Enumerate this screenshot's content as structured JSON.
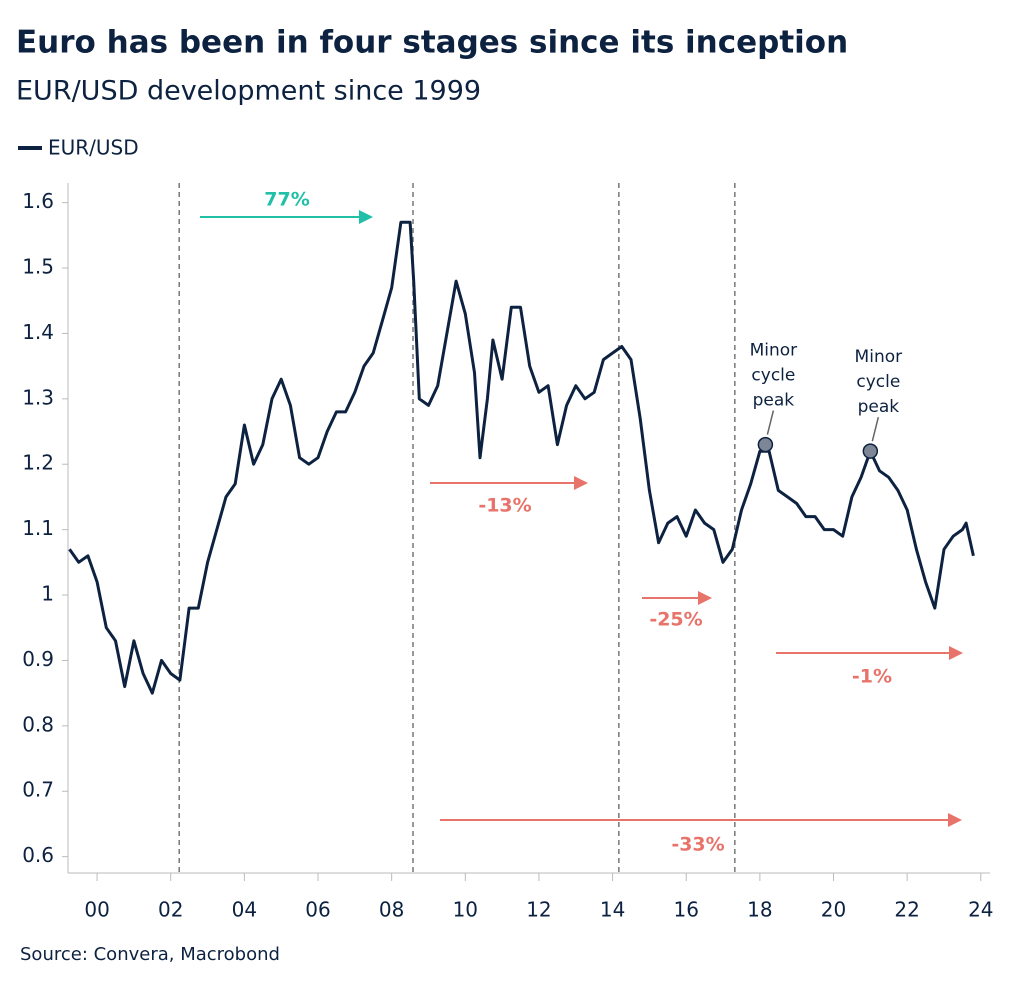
{
  "chart_data": {
    "type": "line",
    "title": "Euro has been in four stages since its inception",
    "subtitle": "EUR/USD development since 1999",
    "source": "Source: Convera, Macrobond",
    "x": [
      1999.25,
      1999.5,
      1999.75,
      2000.0,
      2000.25,
      2000.5,
      2000.75,
      2001.0,
      2001.25,
      2001.5,
      2001.75,
      2002.0,
      2002.25,
      2002.5,
      2002.75,
      2003.0,
      2003.25,
      2003.5,
      2003.75,
      2004.0,
      2004.25,
      2004.5,
      2004.75,
      2005.0,
      2005.25,
      2005.5,
      2005.75,
      2006.0,
      2006.25,
      2006.5,
      2006.75,
      2007.0,
      2007.25,
      2007.5,
      2007.75,
      2008.0,
      2008.25,
      2008.5,
      2008.6,
      2008.75,
      2009.0,
      2009.25,
      2009.5,
      2009.75,
      2010.0,
      2010.25,
      2010.4,
      2010.6,
      2010.75,
      2011.0,
      2011.25,
      2011.5,
      2011.75,
      2012.0,
      2012.25,
      2012.5,
      2012.75,
      2013.0,
      2013.25,
      2013.5,
      2013.75,
      2014.0,
      2014.25,
      2014.5,
      2014.75,
      2015.0,
      2015.25,
      2015.5,
      2015.75,
      2016.0,
      2016.25,
      2016.5,
      2016.75,
      2017.0,
      2017.25,
      2017.5,
      2017.75,
      2018.0,
      2018.25,
      2018.5,
      2018.75,
      2019.0,
      2019.25,
      2019.5,
      2019.75,
      2020.0,
      2020.25,
      2020.5,
      2020.75,
      2021.0,
      2021.25,
      2021.5,
      2021.75,
      2022.0,
      2022.25,
      2022.5,
      2022.75,
      2023.0,
      2023.25,
      2023.5,
      2023.6,
      2023.8
    ],
    "series": [
      {
        "name": "EUR/USD",
        "color": "#0d2240",
        "values": [
          1.07,
          1.05,
          1.06,
          1.02,
          0.95,
          0.93,
          0.86,
          0.93,
          0.88,
          0.85,
          0.9,
          0.88,
          0.87,
          0.98,
          0.98,
          1.05,
          1.1,
          1.15,
          1.17,
          1.26,
          1.2,
          1.23,
          1.3,
          1.33,
          1.29,
          1.21,
          1.2,
          1.21,
          1.25,
          1.28,
          1.28,
          1.31,
          1.35,
          1.37,
          1.42,
          1.47,
          1.57,
          1.57,
          1.48,
          1.3,
          1.29,
          1.32,
          1.4,
          1.48,
          1.43,
          1.34,
          1.21,
          1.3,
          1.39,
          1.33,
          1.44,
          1.44,
          1.35,
          1.31,
          1.32,
          1.23,
          1.29,
          1.32,
          1.3,
          1.31,
          1.36,
          1.37,
          1.38,
          1.36,
          1.27,
          1.16,
          1.08,
          1.11,
          1.12,
          1.09,
          1.13,
          1.11,
          1.1,
          1.05,
          1.07,
          1.13,
          1.17,
          1.22,
          1.22,
          1.16,
          1.15,
          1.14,
          1.12,
          1.12,
          1.1,
          1.1,
          1.09,
          1.15,
          1.18,
          1.22,
          1.19,
          1.18,
          1.16,
          1.13,
          1.07,
          1.02,
          0.98,
          1.07,
          1.09,
          1.1,
          1.11,
          1.06
        ]
      }
    ],
    "xlim": [
      1999.21,
      2024.25
    ],
    "xticks": [
      {
        "value": 2000,
        "label": "00"
      },
      {
        "value": 2002,
        "label": "02"
      },
      {
        "value": 2004,
        "label": "04"
      },
      {
        "value": 2006,
        "label": "06"
      },
      {
        "value": 2008,
        "label": "08"
      },
      {
        "value": 2010,
        "label": "10"
      },
      {
        "value": 2012,
        "label": "12"
      },
      {
        "value": 2014,
        "label": "14"
      },
      {
        "value": 2016,
        "label": "16"
      },
      {
        "value": 2018,
        "label": "18"
      },
      {
        "value": 2020,
        "label": "20"
      },
      {
        "value": 2022,
        "label": "22"
      },
      {
        "value": 2024,
        "label": "24"
      }
    ],
    "ylim": [
      0.575,
      1.63
    ],
    "yticks": [
      0.6,
      0.7,
      0.8,
      0.9,
      1.0,
      1.1,
      1.2,
      1.3,
      1.4,
      1.5,
      1.6
    ],
    "stage_breaks": [
      2002.23,
      2008.58,
      2014.17,
      2017.32
    ],
    "peaks": [
      {
        "label": "Minor cycle peak",
        "x": 2018.15,
        "y": 1.23
      },
      {
        "label": "Minor cycle peak",
        "x": 2021.0,
        "y": 1.22
      }
    ],
    "annotations": [
      {
        "text": "77%",
        "color": "#1fbfa8"
      },
      {
        "text": "-13%",
        "color": "#e8736a"
      },
      {
        "text": "-25%",
        "color": "#e8736a"
      },
      {
        "text": "-1%",
        "color": "#e8736a"
      },
      {
        "text": "-33%",
        "color": "#e8736a"
      }
    ]
  }
}
